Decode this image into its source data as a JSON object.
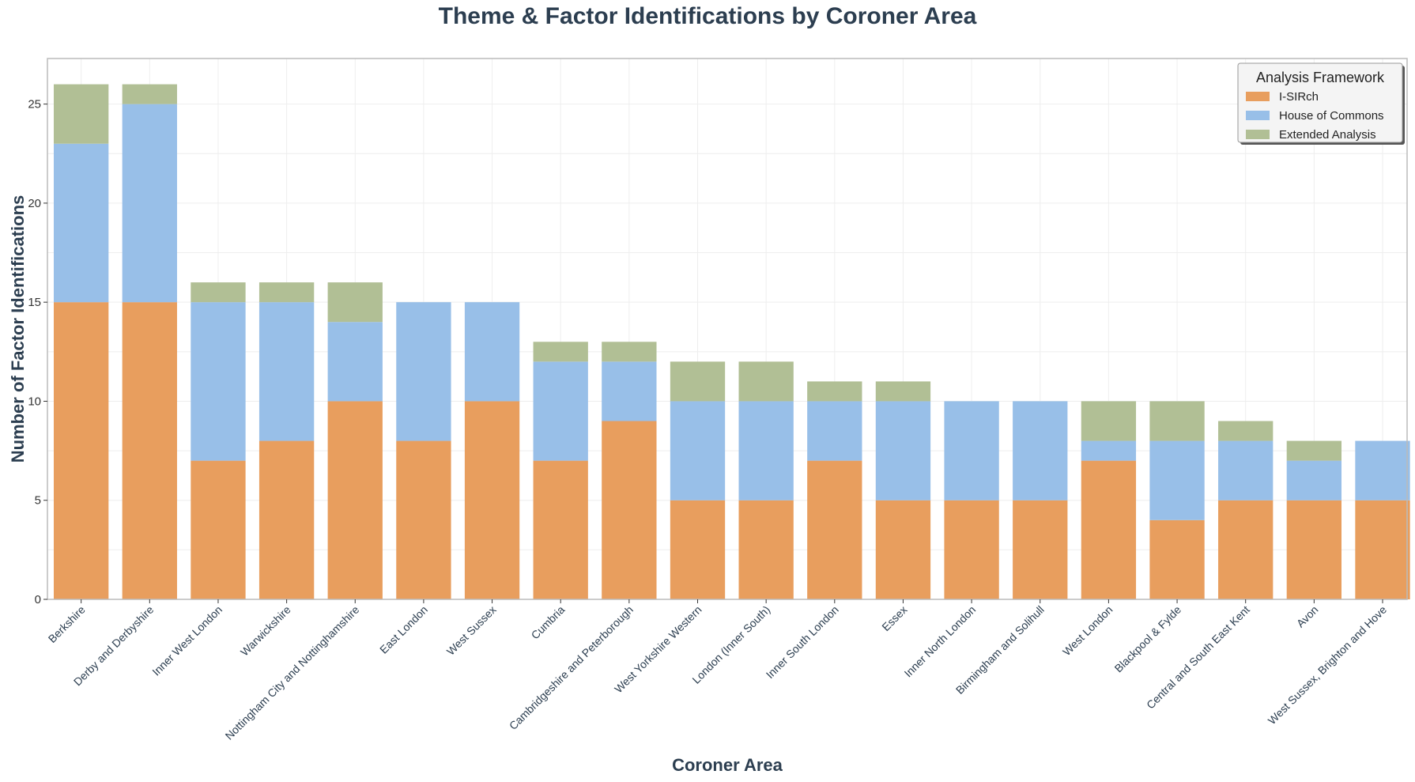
{
  "chart_data": {
    "type": "bar",
    "stacked": true,
    "title": "Theme & Factor Identifications by Coroner Area",
    "xlabel": "Coroner Area",
    "ylabel": "Number of Factor Identifications",
    "ylim": [
      0,
      27.3
    ],
    "yticks": [
      0,
      5,
      10,
      15,
      20,
      25
    ],
    "grid": true,
    "legend": {
      "title": "Analysis Framework",
      "position": "top-right"
    },
    "categories": [
      "Berkshire",
      "Derby and Derbyshire",
      "Inner West London",
      "Warwickshire",
      "Nottingham City and Nottinghamshire",
      "East London",
      "West Sussex",
      "Cumbria",
      "Cambridgeshire and Peterborough",
      "West Yorkshire Western",
      "London (Inner South)",
      "Inner South London",
      "Essex",
      "Inner North London",
      "Birmingham and Solihull",
      "West London",
      "Blackpool & Fylde",
      "Central and South East Kent",
      "Avon",
      "West Sussex, Brighton and Hove"
    ],
    "series": [
      {
        "name": "I-SIRch",
        "color": "#e89e5e",
        "values": [
          15,
          15,
          7,
          8,
          10,
          8,
          10,
          7,
          9,
          5,
          5,
          7,
          5,
          5,
          5,
          7,
          4,
          5,
          5,
          5
        ]
      },
      {
        "name": "House of Commons",
        "color": "#98bfe8",
        "values": [
          8,
          10,
          8,
          7,
          4,
          7,
          5,
          5,
          3,
          5,
          5,
          3,
          5,
          5,
          5,
          1,
          4,
          3,
          2,
          3
        ]
      },
      {
        "name": "Extended Analysis",
        "color": "#b1bf95",
        "values": [
          3,
          1,
          1,
          1,
          2,
          0,
          0,
          1,
          1,
          2,
          2,
          1,
          1,
          0,
          0,
          2,
          2,
          1,
          1,
          0
        ]
      }
    ]
  }
}
